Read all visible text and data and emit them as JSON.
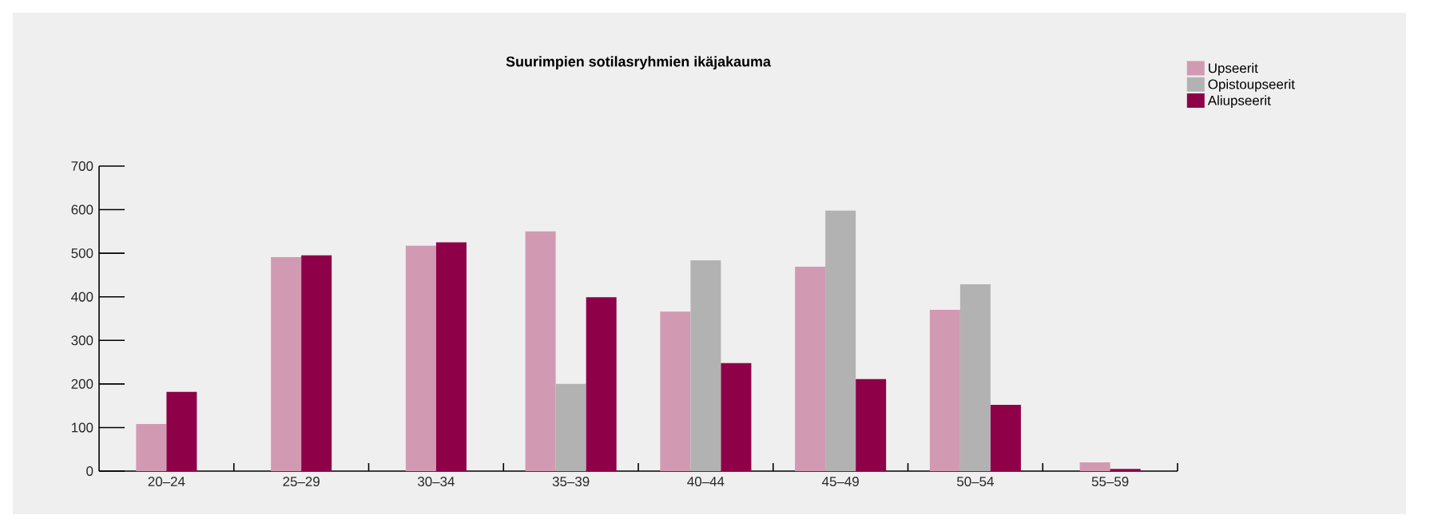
{
  "chart_data": {
    "type": "bar",
    "title": "Suurimpien sotilasryhmien ikäjakauma",
    "categories": [
      "20–24",
      "25–29",
      "30–34",
      "35–39",
      "40–44",
      "45–49",
      "50–54",
      "55–59"
    ],
    "series": [
      {
        "name": "Upseerit",
        "color": "#d29ab2",
        "values": [
          108,
          491,
          517,
          550,
          366,
          469,
          370,
          20
        ]
      },
      {
        "name": "Opistoupseerit",
        "color": "#b2b2b2",
        "values": [
          null,
          null,
          null,
          200,
          484,
          598,
          429,
          null
        ]
      },
      {
        "name": "Aliupseerit",
        "color": "#8e0048",
        "values": [
          182,
          495,
          525,
          399,
          248,
          211,
          152,
          5
        ]
      }
    ],
    "ylim": [
      0,
      700
    ],
    "yticks": [
      0,
      100,
      200,
      300,
      400,
      500,
      600,
      700
    ],
    "grid": false,
    "legend": "top right"
  }
}
